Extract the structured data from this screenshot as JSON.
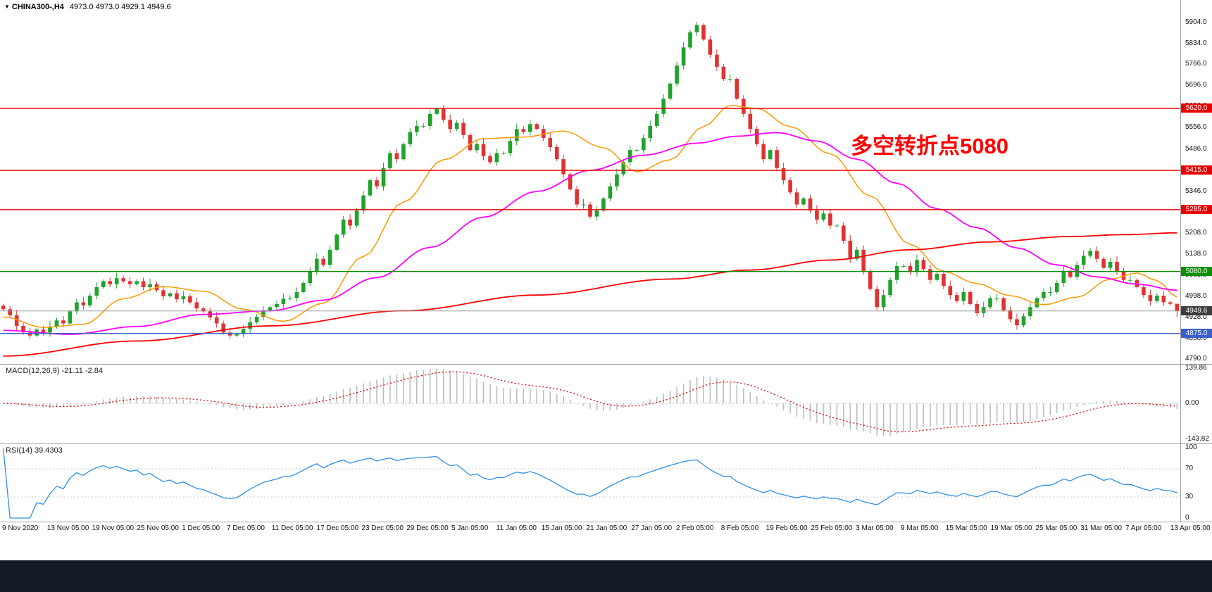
{
  "header": {
    "collapse_icon": "▼",
    "symbol_period": "CHINA300-,H4",
    "ohlc": "4973.0 4973.0 4929.1 4949.6"
  },
  "annotation": {
    "text": "多空转折点5080",
    "color": "#ff0000"
  },
  "chart_data": {
    "type": "candlestick",
    "symbol": "CHINA300-",
    "timeframe": "H4",
    "last_candle": {
      "open": 4973.0,
      "high": 4973.0,
      "low": 4929.1,
      "close": 4949.6
    },
    "ylim": [
      4774,
      5979
    ],
    "y_ticks": [
      {
        "label": "5904.0",
        "value": 5904
      },
      {
        "label": "5834.0",
        "value": 5834
      },
      {
        "label": "5766.0",
        "value": 5766
      },
      {
        "label": "5696.0",
        "value": 5696
      },
      {
        "label": "5626.0",
        "value": 5626
      },
      {
        "label": "5556.0",
        "value": 5556
      },
      {
        "label": "5486.0",
        "value": 5486
      },
      {
        "label": "5416.0",
        "value": 5416
      },
      {
        "label": "5346.0",
        "value": 5346
      },
      {
        "label": "5276.0",
        "value": 5276
      },
      {
        "label": "5208.0",
        "value": 5208
      },
      {
        "label": "5138.0",
        "value": 5138
      },
      {
        "label": "5068.0",
        "value": 5068
      },
      {
        "label": "4998.0",
        "value": 4998
      },
      {
        "label": "4928.0",
        "value": 4928
      },
      {
        "label": "4858.0",
        "value": 4858
      },
      {
        "label": "4790.0",
        "value": 4790
      }
    ],
    "x_labels": [
      "9 Nov 2020",
      "13 Nov 05:00",
      "19 Nov 05:00",
      "25 Nov 05:00",
      "1 Dec 05:00",
      "7 Dec 05:00",
      "11 Dec 05:00",
      "17 Dec 05:00",
      "23 Dec 05:00",
      "29 Dec 05:00",
      "5 Jan 05:00",
      "11 Jan 05:00",
      "15 Jan 05:00",
      "21 Jan 05:00",
      "27 Jan 05:00",
      "2 Feb 05:00",
      "8 Feb 05:00",
      "19 Feb 05:00",
      "25 Feb 05:00",
      "3 Mar 05:00",
      "9 Mar 05:00",
      "15 Mar 05:00",
      "19 Mar 05:00",
      "25 Mar 05:00",
      "31 Mar 05:00",
      "7 Apr 05:00",
      "13 Apr 05:00"
    ],
    "closes": [
      4955,
      4935,
      4900,
      4878,
      4868,
      4888,
      4878,
      4898,
      4918,
      4908,
      4948,
      4978,
      4968,
      5000,
      5028,
      5048,
      5038,
      5058,
      5048,
      5038,
      5048,
      5028,
      5038,
      5018,
      4998,
      5008,
      4988,
      4998,
      4978,
      4958,
      4948,
      4928,
      4908,
      4878,
      4868,
      4872,
      4890,
      4912,
      4930,
      4950,
      4962,
      4972,
      4990,
      4992,
      5012,
      5042,
      5082,
      5122,
      5102,
      5152,
      5202,
      5252,
      5232,
      5282,
      5332,
      5382,
      5362,
      5422,
      5472,
      5452,
      5502,
      5542,
      5562,
      5562,
      5602,
      5618,
      5582,
      5552,
      5572,
      5532,
      5482,
      5502,
      5462,
      5442,
      5472,
      5472,
      5512,
      5552,
      5542,
      5568,
      5552,
      5522,
      5492,
      5452,
      5402,
      5352,
      5302,
      5302,
      5262,
      5282,
      5322,
      5362,
      5402,
      5442,
      5482,
      5482,
      5522,
      5562,
      5602,
      5652,
      5702,
      5762,
      5822,
      5872,
      5896,
      5848,
      5798,
      5758,
      5718,
      5718,
      5652,
      5602,
      5552,
      5502,
      5452,
      5482,
      5422,
      5382,
      5342,
      5302,
      5322,
      5282,
      5252,
      5272,
      5232,
      5232,
      5182,
      5122,
      5152,
      5082,
      5022,
      4962,
      5002,
      5052,
      5098,
      5098,
      5078,
      5118,
      5088,
      5052,
      5072,
      5032,
      5002,
      4982,
      5012,
      4972,
      4942,
      4962,
      4992,
      4992,
      4952,
      4922,
      4902,
      4932,
      4962,
      4992,
      5012,
      5012,
      5042,
      5082,
      5062,
      5102,
      5132,
      5148,
      5122,
      5092,
      5112,
      5082,
      5052,
      5052,
      5028,
      5002,
      4982,
      5000,
      4978,
      4973,
      4949.6
    ],
    "levels": [
      {
        "label": "5620.0",
        "value": 5620,
        "color": "#e80000"
      },
      {
        "label": "5415.0",
        "value": 5415,
        "color": "#e80000"
      },
      {
        "label": "5285.0",
        "value": 5285,
        "color": "#e80000"
      },
      {
        "label": "5080.0",
        "value": 5080,
        "color": "#089000"
      },
      {
        "label": "4875.0",
        "value": 4875,
        "color": "#3a5fcd"
      }
    ],
    "current_price": {
      "label": "4949.6",
      "value": 4949.6,
      "line_color": "#9a9a9a",
      "tag_bg": "#3d3d3d"
    },
    "ma_lines": [
      {
        "name": "ma-fast",
        "color": "#ff9900",
        "width": 1.5,
        "keypoints": [
          [
            0,
            4930
          ],
          [
            6,
            4895
          ],
          [
            12,
            4905
          ],
          [
            18,
            4990
          ],
          [
            24,
            5030
          ],
          [
            30,
            5015
          ],
          [
            36,
            4955
          ],
          [
            42,
            4915
          ],
          [
            48,
            4975
          ],
          [
            54,
            5130
          ],
          [
            60,
            5310
          ],
          [
            66,
            5450
          ],
          [
            72,
            5520
          ],
          [
            78,
            5525
          ],
          [
            84,
            5545
          ],
          [
            90,
            5490
          ],
          [
            95,
            5410
          ],
          [
            100,
            5450
          ],
          [
            105,
            5560
          ],
          [
            109,
            5630
          ],
          [
            113,
            5620
          ],
          [
            118,
            5560
          ],
          [
            124,
            5470
          ],
          [
            130,
            5330
          ],
          [
            136,
            5170
          ],
          [
            141,
            5080
          ],
          [
            146,
            5040
          ],
          [
            151,
            5000
          ],
          [
            156,
            4970
          ],
          [
            161,
            4995
          ],
          [
            166,
            5055
          ],
          [
            170,
            5075
          ],
          [
            173,
            5050
          ],
          [
            176,
            4995
          ]
        ]
      },
      {
        "name": "ma-mid",
        "color": "#ff00ff",
        "width": 1.8,
        "keypoints": [
          [
            0,
            4885
          ],
          [
            10,
            4872
          ],
          [
            20,
            4898
          ],
          [
            30,
            4938
          ],
          [
            40,
            4950
          ],
          [
            48,
            4985
          ],
          [
            56,
            5060
          ],
          [
            64,
            5160
          ],
          [
            72,
            5260
          ],
          [
            80,
            5345
          ],
          [
            88,
            5415
          ],
          [
            96,
            5465
          ],
          [
            104,
            5505
          ],
          [
            110,
            5528
          ],
          [
            116,
            5540
          ],
          [
            122,
            5512
          ],
          [
            128,
            5452
          ],
          [
            134,
            5372
          ],
          [
            140,
            5288
          ],
          [
            146,
            5225
          ],
          [
            152,
            5158
          ],
          [
            158,
            5102
          ],
          [
            164,
            5062
          ],
          [
            170,
            5038
          ],
          [
            176,
            5018
          ]
        ]
      },
      {
        "name": "ma-slow",
        "color": "#ff0000",
        "width": 1.8,
        "keypoints": [
          [
            0,
            4800
          ],
          [
            20,
            4850
          ],
          [
            40,
            4900
          ],
          [
            60,
            4950
          ],
          [
            80,
            5002
          ],
          [
            100,
            5055
          ],
          [
            112,
            5085
          ],
          [
            124,
            5118
          ],
          [
            136,
            5152
          ],
          [
            148,
            5178
          ],
          [
            160,
            5196
          ],
          [
            168,
            5202
          ],
          [
            176,
            5208
          ]
        ]
      }
    ],
    "colors": {
      "up": "#1fa32b",
      "down": "#e03232",
      "macd_histogram": "#bdbdbd",
      "macd_signal": "#e00000",
      "rsi_line": "#2f8fe8",
      "grid_dashed": "#c8c8c8"
    },
    "indicators": [
      {
        "name": "macd",
        "label": "MACD(12,26,9) -21.11 -2.84",
        "fast": 12,
        "slow": 26,
        "signal": 9,
        "main_value": -21.11,
        "signal_value": -2.84,
        "range": [
          -160,
          155
        ],
        "y_ticks": [
          {
            "label": "139.86",
            "value": 139.86
          },
          {
            "label": "0.00",
            "value": 0
          },
          {
            "label": "-143.82",
            "value": -143.82
          }
        ]
      },
      {
        "name": "rsi",
        "label": "RSI(14) 39.4303",
        "period": 14,
        "value": 39.4303,
        "levels": [
          70,
          30
        ],
        "range": [
          -5,
          105
        ],
        "y_ticks": [
          {
            "label": "100",
            "value": 100
          },
          {
            "label": "70",
            "value": 70
          },
          {
            "label": "30",
            "value": 30
          },
          {
            "label": "0",
            "value": 0
          }
        ]
      }
    ]
  }
}
